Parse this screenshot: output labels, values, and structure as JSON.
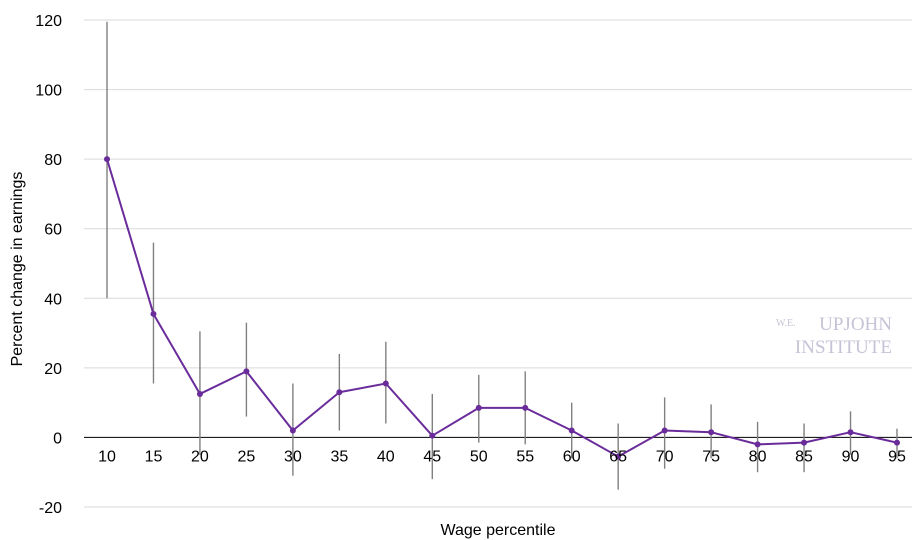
{
  "chart_data": {
    "type": "line",
    "title": "",
    "xlabel": "Wage percentile",
    "ylabel": "Percent change in earnings",
    "ylim": [
      -20,
      120
    ],
    "yticks": [
      -20,
      0,
      20,
      40,
      60,
      80,
      100,
      120
    ],
    "grid": true,
    "categories": [
      "10",
      "15",
      "20",
      "25",
      "30",
      "35",
      "40",
      "45",
      "50",
      "55",
      "60",
      "65",
      "70",
      "75",
      "80",
      "85",
      "90",
      "95"
    ],
    "series": [
      {
        "values": [
          80,
          35.5,
          12.5,
          19,
          2,
          13,
          15.5,
          0.5,
          8.5,
          8.5,
          2,
          -5.5,
          2,
          1.5,
          -2,
          -1.5,
          1.5,
          -1.5
        ],
        "error_low": [
          40,
          15.5,
          -5,
          6,
          -11,
          2,
          4,
          -12,
          -1.5,
          -2,
          -6,
          -15,
          -9,
          -6,
          -10,
          -10,
          -5,
          -6
        ],
        "error_high": [
          119.5,
          56,
          30.5,
          33,
          15.5,
          24,
          27.5,
          12.5,
          18,
          19,
          10,
          4,
          11.5,
          9.5,
          4.5,
          4,
          7.5,
          2.5
        ],
        "color": "#6a2c9b",
        "error_bar_color": "#808080"
      }
    ],
    "watermark": {
      "small": "W.E.",
      "line1": "UPJOHN",
      "line2": "INSTITUTE"
    }
  }
}
